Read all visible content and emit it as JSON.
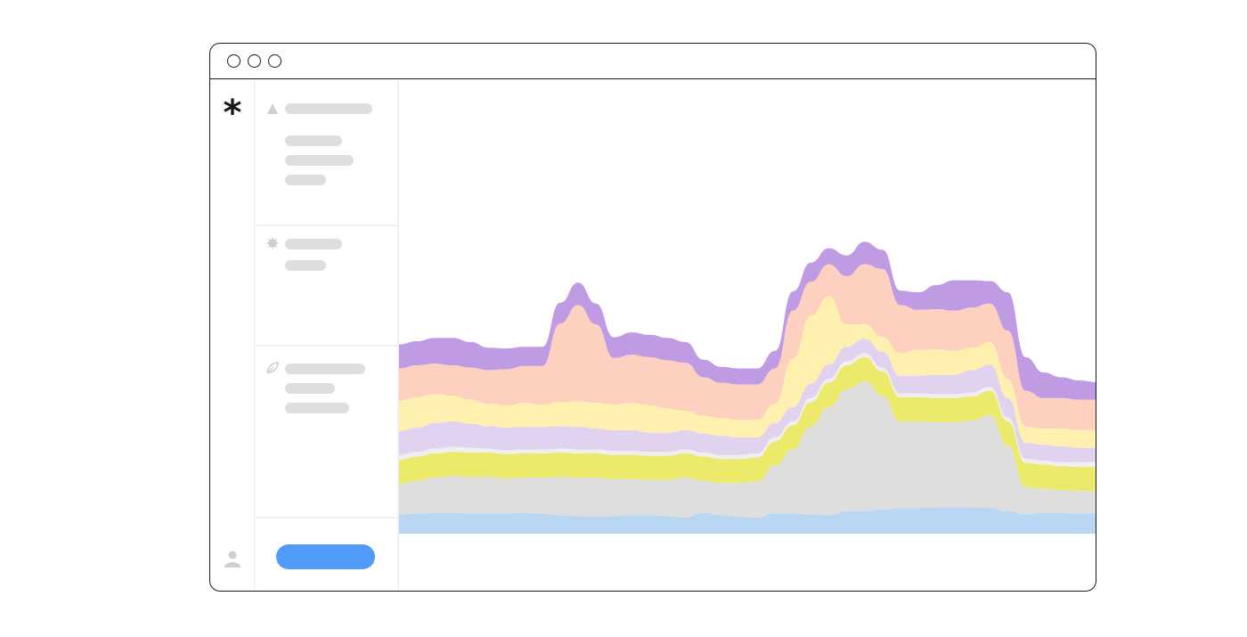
{
  "app": {
    "logo_glyph": "*",
    "icons": {
      "logo": "asterisk-logo",
      "user": "user-icon",
      "section_1": "triangle-icon",
      "section_2": "badge-star-icon",
      "section_3": "leaf-icon"
    }
  },
  "colors": {
    "sidebar_placeholder": "#dedede",
    "action_button": "#4f9bf7",
    "border": "#1a1a1a"
  },
  "chart_data": {
    "type": "area",
    "stacked": true,
    "baseline": "streamgraph",
    "grid": false,
    "legend": "none",
    "title": "",
    "xlabel": "",
    "ylabel": "",
    "x": [
      0,
      1,
      2,
      3,
      4,
      5,
      6,
      7,
      8,
      9,
      10,
      11,
      12,
      13,
      14,
      15,
      16,
      17,
      18,
      19,
      20,
      21,
      22,
      23,
      24,
      25,
      26,
      27,
      28,
      29,
      30,
      31,
      32,
      33,
      34,
      35,
      36,
      37,
      38,
      39
    ],
    "series": [
      {
        "color": "#b9d7f3",
        "values": [
          24,
          25,
          26,
          26,
          25,
          25,
          25,
          26,
          25,
          23,
          22,
          22,
          22,
          23,
          23,
          22,
          20,
          26,
          23,
          21,
          20,
          25,
          25,
          24,
          23,
          28,
          28,
          30,
          32,
          32,
          33,
          33,
          33,
          32,
          28,
          24,
          26,
          26,
          25,
          25
        ]
      },
      {
        "color": "#dededc",
        "values": [
          38,
          41,
          44,
          46,
          46,
          46,
          44,
          44,
          45,
          48,
          48,
          48,
          46,
          45,
          44,
          45,
          50,
          40,
          40,
          42,
          45,
          60,
          80,
          110,
          135,
          152,
          162,
          142,
          108,
          108,
          106,
          106,
          108,
          116,
          82,
          34,
          30,
          28,
          28,
          28
        ]
      },
      {
        "color": "#ecea6a",
        "values": [
          30,
          30,
          30,
          30,
          30,
          30,
          30,
          30,
          30,
          30,
          30,
          30,
          30,
          30,
          30,
          30,
          30,
          30,
          30,
          30,
          30,
          30,
          30,
          30,
          30,
          30,
          30,
          30,
          30,
          30,
          30,
          30,
          30,
          30,
          30,
          30,
          30,
          30,
          30,
          30
        ]
      },
      {
        "color": "#f0eeee",
        "values": [
          6,
          6,
          6,
          6,
          6,
          5,
          5,
          5,
          5,
          5,
          5,
          5,
          5,
          5,
          5,
          5,
          5,
          5,
          5,
          5,
          5,
          5,
          5,
          5,
          5,
          5,
          5,
          5,
          5,
          5,
          5,
          5,
          5,
          5,
          5,
          5,
          5,
          5,
          6,
          6
        ]
      },
      {
        "color": "#e1d3f0",
        "values": [
          30,
          30,
          32,
          32,
          30,
          28,
          28,
          28,
          28,
          28,
          28,
          26,
          26,
          26,
          24,
          24,
          24,
          24,
          24,
          22,
          20,
          18,
          18,
          18,
          18,
          18,
          18,
          20,
          22,
          22,
          24,
          24,
          28,
          28,
          24,
          20,
          20,
          20,
          18,
          18
        ]
      },
      {
        "color": "#fff0b0",
        "values": [
          38,
          38,
          36,
          32,
          30,
          28,
          28,
          30,
          28,
          30,
          32,
          32,
          32,
          34,
          34,
          30,
          24,
          22,
          22,
          22,
          22,
          24,
          60,
          85,
          85,
          28,
          18,
          18,
          28,
          32,
          32,
          30,
          28,
          28,
          24,
          20,
          20,
          22,
          22,
          22
        ]
      },
      {
        "color": "#fdd0c0",
        "values": [
          40,
          40,
          38,
          38,
          40,
          42,
          45,
          46,
          48,
          98,
          120,
          98,
          58,
          60,
          60,
          60,
          60,
          48,
          44,
          44,
          44,
          44,
          60,
          42,
          40,
          60,
          75,
          85,
          60,
          50,
          50,
          50,
          50,
          48,
          60,
          45,
          38,
          38,
          38,
          38
        ]
      },
      {
        "color": "#bf9be4",
        "values": [
          30,
          30,
          32,
          34,
          32,
          28,
          26,
          24,
          24,
          26,
          28,
          26,
          26,
          28,
          28,
          28,
          26,
          22,
          20,
          20,
          20,
          22,
          24,
          24,
          20,
          26,
          28,
          24,
          18,
          22,
          30,
          38,
          34,
          28,
          48,
          42,
          32,
          26,
          24,
          22
        ]
      }
    ]
  }
}
